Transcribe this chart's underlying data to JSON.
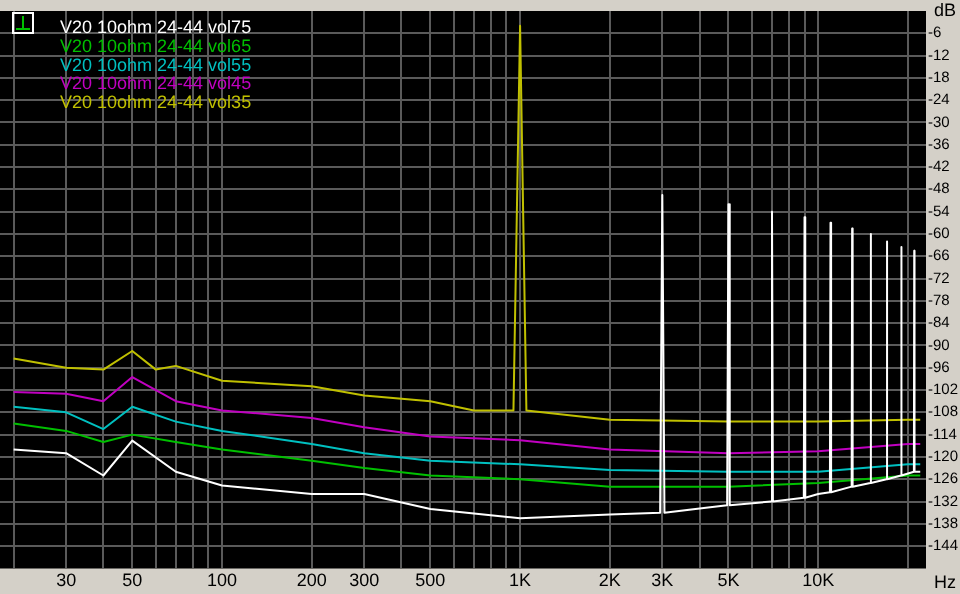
{
  "chart_data": {
    "type": "line",
    "xlabel": "Hz",
    "ylabel": "dB",
    "log": "x",
    "grid": true,
    "legend": "top left",
    "xlim": [
      18,
      23000
    ],
    "xticks": [
      {
        "value": 20,
        "label": null
      },
      30,
      {
        "value": 40,
        "label": null
      },
      50,
      {
        "value": 60,
        "label": null
      },
      {
        "value": 70,
        "label": null
      },
      {
        "value": 80,
        "label": null
      },
      {
        "value": 90,
        "label": null
      },
      100,
      200,
      300,
      {
        "value": 400,
        "label": null
      },
      500,
      {
        "value": 600,
        "label": null
      },
      {
        "value": 700,
        "label": null
      },
      {
        "value": 800,
        "label": null
      },
      {
        "value": 900,
        "label": null
      },
      {
        "value": 1000,
        "label": "1K"
      },
      {
        "value": 2000,
        "label": "2K"
      },
      {
        "value": 3000,
        "label": "3K"
      },
      {
        "value": 4000,
        "label": null
      },
      {
        "value": 5000,
        "label": "5K"
      },
      {
        "value": 6000,
        "label": null
      },
      {
        "value": 7000,
        "label": null
      },
      {
        "value": 8000,
        "label": null
      },
      {
        "value": 9000,
        "label": null
      },
      {
        "value": 10000,
        "label": "10K"
      },
      {
        "value": 20000,
        "label": null
      }
    ],
    "ylim": [
      -150,
      0
    ],
    "yticks": [
      -6,
      -12,
      -18,
      -24,
      -30,
      -36,
      -42,
      -48,
      -54,
      -60,
      -66,
      -72,
      -78,
      -84,
      -90,
      -96,
      -102,
      -108,
      -114,
      -120,
      -126,
      -132,
      -138,
      -144
    ],
    "series": [
      {
        "name": "V20 10ohm 24-44 vol75",
        "color": "#ffffff",
        "x": [
          20,
          30,
          40,
          50,
          70,
          100,
          200,
          300,
          500,
          1000,
          2000,
          2950,
          3000,
          3050,
          4950,
          5000,
          5050,
          6950,
          7000,
          7050,
          8950,
          9000,
          9050,
          10000,
          10950,
          11000,
          11050,
          12950,
          13000,
          13050,
          14950,
          15000,
          15050,
          16950,
          17000,
          17050,
          18950,
          19000,
          19050,
          20950,
          21000,
          21050,
          22000
        ],
        "values": [
          -118,
          -119,
          -125,
          -115.6,
          -124,
          -127.7,
          -130,
          -130,
          -134,
          -136.5,
          -135.5,
          -135,
          -49.5,
          -135,
          -133,
          -52,
          -133,
          -132,
          -54,
          -132,
          -131,
          -55.5,
          -131,
          -130,
          -129.5,
          -57,
          -129.5,
          -128,
          -58.5,
          -128,
          -127,
          -60,
          -127,
          -126,
          -62,
          -126,
          -125,
          -63.5,
          -125,
          -124,
          -64.5,
          -124,
          -124
        ]
      },
      {
        "name": "V20 10ohm 24-44 vol65",
        "color": "#00c000",
        "x": [
          20,
          30,
          40,
          50,
          70,
          100,
          200,
          300,
          500,
          1000,
          2000,
          5000,
          10000,
          20000,
          22000
        ],
        "values": [
          -111,
          -113,
          -116,
          -114,
          -116,
          -118,
          -121,
          -123,
          -125,
          -126,
          -128,
          -128,
          -127,
          -125,
          -125
        ]
      },
      {
        "name": "V20 10ohm 24-44 vol55",
        "color": "#00c0c0",
        "x": [
          20,
          30,
          40,
          50,
          70,
          100,
          200,
          300,
          500,
          1000,
          2000,
          5000,
          10000,
          20000,
          22000
        ],
        "values": [
          -106.5,
          -108,
          -112.5,
          -106.5,
          -110.5,
          -113,
          -116.5,
          -119,
          -121,
          -122,
          -123.5,
          -124,
          -124,
          -122,
          -122
        ]
      },
      {
        "name": "V20 10ohm 24-44 vol45",
        "color": "#c000c0",
        "x": [
          20,
          30,
          40,
          50,
          70,
          100,
          200,
          300,
          500,
          1000,
          2000,
          5000,
          10000,
          20000,
          22000
        ],
        "values": [
          -102.5,
          -103,
          -105,
          -98.5,
          -105,
          -107.5,
          -109.5,
          -112,
          -114.5,
          -115.5,
          -118,
          -119,
          -118.5,
          -116.5,
          -116.5
        ]
      },
      {
        "name": "V20 10ohm 24-44 vol35",
        "color": "#c0c000",
        "x": [
          20,
          30,
          40,
          50,
          60,
          70,
          100,
          200,
          300,
          500,
          700,
          950,
          1000,
          1050,
          2000,
          5000,
          10000,
          20000,
          22000
        ],
        "values": [
          -93.5,
          -96,
          -96.5,
          -91.5,
          -96.5,
          -95.5,
          -99.5,
          -101,
          -103.5,
          -105,
          -107.5,
          -107.5,
          -4,
          -107.5,
          -110,
          -110.5,
          -110.5,
          -110,
          -110
        ]
      }
    ]
  }
}
